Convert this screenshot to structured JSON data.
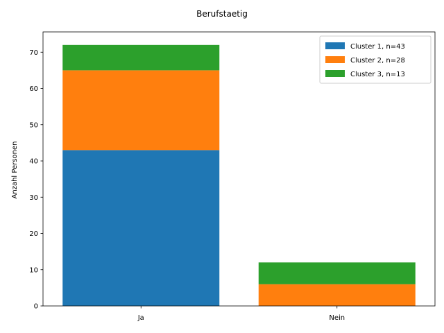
{
  "chart_data": {
    "type": "bar",
    "stacked": true,
    "title": "Berufstaetig",
    "xlabel": "",
    "ylabel": "Anzahl Personen",
    "categories": [
      "Ja",
      "Nein"
    ],
    "series": [
      {
        "name": "Cluster 1, n=43",
        "color": "#1f77b4",
        "values": [
          43,
          0
        ]
      },
      {
        "name": "Cluster 2, n=28",
        "color": "#ff7f0e",
        "values": [
          22,
          6
        ]
      },
      {
        "name": "Cluster 3, n=13",
        "color": "#2ca02c",
        "values": [
          7,
          6
        ]
      }
    ],
    "ylim": [
      0,
      75.6
    ],
    "yticks": [
      0,
      10,
      20,
      30,
      40,
      50,
      60,
      70
    ],
    "grid": false,
    "legend_position": "top-right"
  }
}
